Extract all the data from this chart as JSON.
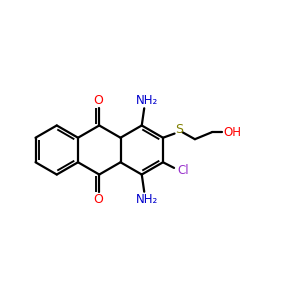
{
  "bg_color": "#ffffff",
  "bond_color": "#000000",
  "o_color": "#ff0000",
  "n_color": "#0000cc",
  "cl_color": "#9933cc",
  "s_color": "#808000",
  "oh_color": "#ff0000",
  "line_width": 1.6,
  "figsize": [
    3.0,
    3.0
  ],
  "dpi": 100,
  "xlim": [
    0,
    12
  ],
  "ylim": [
    0,
    10
  ]
}
